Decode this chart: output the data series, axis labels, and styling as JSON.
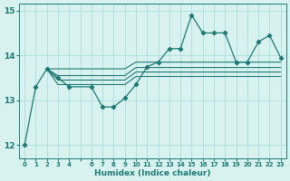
{
  "xlabel": "Humidex (Indice chaleur)",
  "background_color": "#d8f2f0",
  "grid_color": "#aedddd",
  "line_color": "#1e7a72",
  "series_main": [
    0,
    1,
    2,
    3,
    4,
    6,
    7,
    8,
    9,
    10,
    11,
    12,
    13,
    14,
    15,
    16,
    17,
    18,
    19,
    20,
    21,
    22,
    23
  ],
  "values_main": [
    12.0,
    13.3,
    13.7,
    13.5,
    13.3,
    13.3,
    12.85,
    12.85,
    13.05,
    13.35,
    13.75,
    13.85,
    14.15,
    14.15,
    14.9,
    14.5,
    14.5,
    14.5,
    13.85,
    13.85,
    14.3,
    14.45,
    13.95
  ],
  "line1_x": [
    2,
    3,
    4,
    6,
    7,
    8,
    9,
    10,
    11,
    12,
    13,
    14,
    15,
    16,
    17,
    18,
    19,
    20,
    21,
    22,
    23
  ],
  "line1_y": [
    13.7,
    13.7,
    13.7,
    13.7,
    13.7,
    13.7,
    13.7,
    13.85,
    13.85,
    13.85,
    13.85,
    13.85,
    13.85,
    13.85,
    13.85,
    13.85,
    13.85,
    13.85,
    13.85,
    13.85,
    13.85
  ],
  "line2_x": [
    2,
    3,
    4,
    6,
    7,
    8,
    9,
    10,
    11,
    12,
    13,
    14,
    15,
    16,
    17,
    18,
    19,
    20,
    21,
    22,
    23
  ],
  "line2_y": [
    13.7,
    13.55,
    13.55,
    13.55,
    13.55,
    13.55,
    13.55,
    13.73,
    13.73,
    13.73,
    13.73,
    13.73,
    13.73,
    13.73,
    13.73,
    13.73,
    13.73,
    13.73,
    13.73,
    13.73,
    13.73
  ],
  "line3_x": [
    2,
    3,
    4,
    6,
    7,
    8,
    9,
    10,
    11,
    12,
    13,
    14,
    15,
    16,
    17,
    18,
    19,
    20,
    21,
    22,
    23
  ],
  "line3_y": [
    13.7,
    13.45,
    13.45,
    13.45,
    13.45,
    13.45,
    13.45,
    13.63,
    13.63,
    13.63,
    13.63,
    13.63,
    13.63,
    13.63,
    13.63,
    13.63,
    13.63,
    13.63,
    13.63,
    13.63,
    13.63
  ],
  "line4_x": [
    2,
    3,
    4,
    6,
    7,
    8,
    9,
    10,
    11,
    12,
    13,
    14,
    15,
    16,
    17,
    18,
    19,
    20,
    21,
    22,
    23
  ],
  "line4_y": [
    13.7,
    13.35,
    13.35,
    13.35,
    13.35,
    13.35,
    13.35,
    13.53,
    13.53,
    13.53,
    13.53,
    13.53,
    13.53,
    13.53,
    13.53,
    13.53,
    13.53,
    13.53,
    13.53,
    13.53,
    13.53
  ],
  "ylim": [
    11.7,
    15.15
  ],
  "xlim": [
    -0.5,
    23.5
  ],
  "yticks": [
    12,
    13,
    14,
    15
  ],
  "xtick_labels": [
    "0",
    "1",
    "2",
    "3",
    "4",
    "",
    "6",
    "7",
    "8",
    "9",
    "10",
    "11",
    "12",
    "13",
    "14",
    "15",
    "16",
    "17",
    "18",
    "19",
    "20",
    "21",
    "22",
    "23"
  ]
}
